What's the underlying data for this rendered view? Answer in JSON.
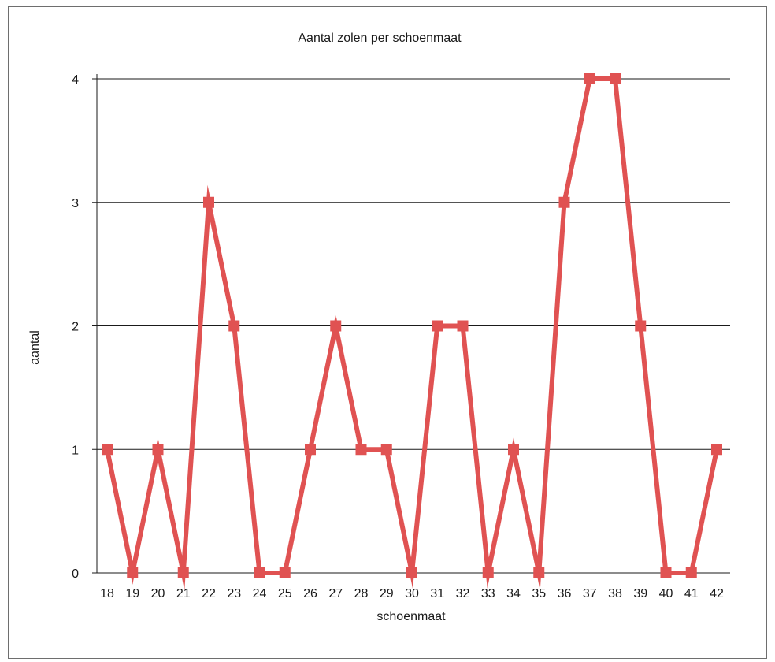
{
  "chart_data": {
    "type": "line",
    "title": "Aantal zolen per schoenmaat",
    "xlabel": "schoenmaat",
    "ylabel": "aantal",
    "categories": [
      "18",
      "19",
      "20",
      "21",
      "22",
      "23",
      "24",
      "25",
      "26",
      "27",
      "28",
      "29",
      "30",
      "31",
      "32",
      "33",
      "34",
      "35",
      "36",
      "37",
      "38",
      "39",
      "40",
      "41",
      "42"
    ],
    "series": [
      {
        "values": [
          1,
          0,
          1,
          0,
          3,
          2,
          0,
          0,
          1,
          2,
          1,
          1,
          0,
          2,
          2,
          0,
          1,
          0,
          3,
          4,
          4,
          2,
          0,
          0,
          1
        ],
        "color": "#e05252",
        "marker": "square"
      }
    ],
    "ylim": [
      0,
      4
    ],
    "yticks": [
      0,
      1,
      2,
      3,
      4
    ],
    "grid": true,
    "legend": "none"
  }
}
